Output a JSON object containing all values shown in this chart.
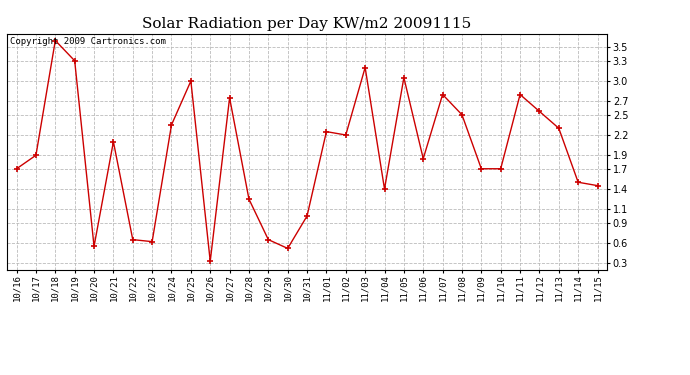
{
  "title": "Solar Radiation per Day KW/m2 20091115",
  "copyright": "Copyright 2009 Cartronics.com",
  "labels": [
    "10/16",
    "10/17",
    "10/18",
    "10/19",
    "10/20",
    "10/21",
    "10/22",
    "10/23",
    "10/24",
    "10/25",
    "10/26",
    "10/27",
    "10/28",
    "10/29",
    "10/30",
    "10/31",
    "11/01",
    "11/02",
    "11/03",
    "11/04",
    "11/05",
    "11/06",
    "11/07",
    "11/08",
    "11/09",
    "11/10",
    "11/11",
    "11/12",
    "11/13",
    "11/14",
    "11/15"
  ],
  "values": [
    1.7,
    1.9,
    3.6,
    3.3,
    0.55,
    2.1,
    0.65,
    0.62,
    2.35,
    3.0,
    0.33,
    2.75,
    1.25,
    0.65,
    0.52,
    1.0,
    2.25,
    2.2,
    3.2,
    1.4,
    3.05,
    1.85,
    2.8,
    2.5,
    1.7,
    1.7,
    2.8,
    2.55,
    2.3,
    1.5,
    1.45
  ],
  "line_color": "#cc0000",
  "marker": "+",
  "marker_size": 5,
  "ylim": [
    0.2,
    3.7
  ],
  "yticks": [
    0.3,
    0.6,
    0.9,
    1.1,
    1.4,
    1.7,
    1.9,
    2.2,
    2.5,
    2.7,
    3.0,
    3.3,
    3.5
  ],
  "background_color": "#ffffff",
  "grid_color": "#bbbbbb",
  "title_fontsize": 11,
  "copyright_fontsize": 6.5,
  "tick_fontsize": 6.5,
  "ytick_fontsize": 7
}
